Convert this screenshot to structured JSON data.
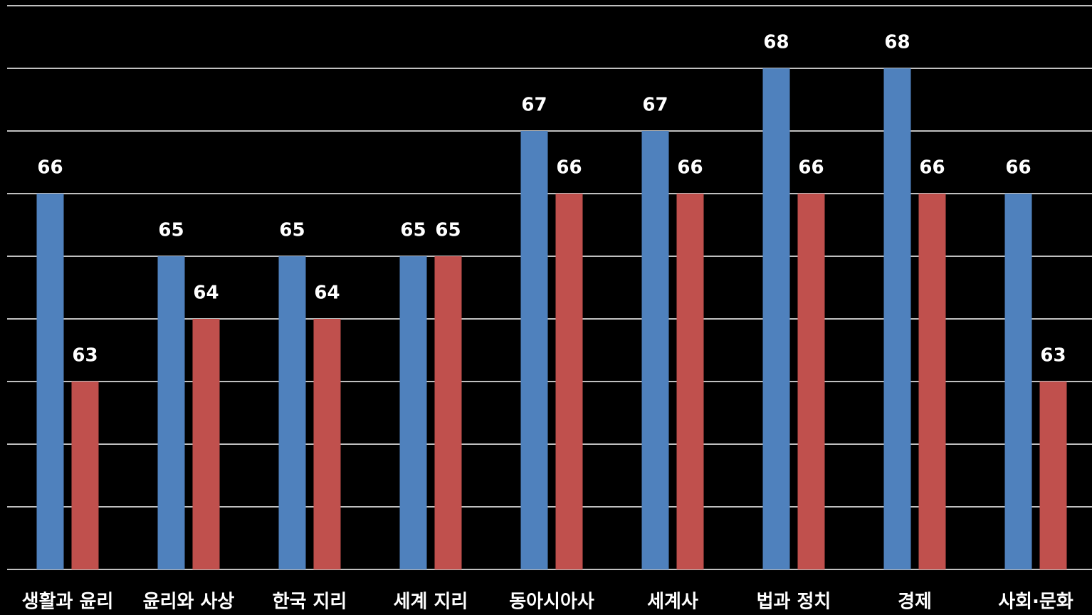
{
  "chart_data": {
    "type": "bar",
    "categories": [
      "생활과 윤리",
      "윤리와 사상",
      "한국 지리",
      "세계 지리",
      "동아시아사",
      "세계사",
      "법과 정치",
      "경제",
      "사회·문화"
    ],
    "series": [
      {
        "color": "#4f81bd",
        "values": [
          66,
          65,
          65,
          65,
          67,
          67,
          68,
          68,
          66
        ]
      },
      {
        "color": "#c0504d",
        "values": [
          63,
          64,
          64,
          65,
          66,
          66,
          66,
          66,
          63
        ]
      }
    ],
    "ylim": [
      60,
      69
    ],
    "yticks": [
      60,
      61,
      62,
      63,
      64,
      65,
      66,
      67,
      68,
      69
    ],
    "grid": true
  }
}
